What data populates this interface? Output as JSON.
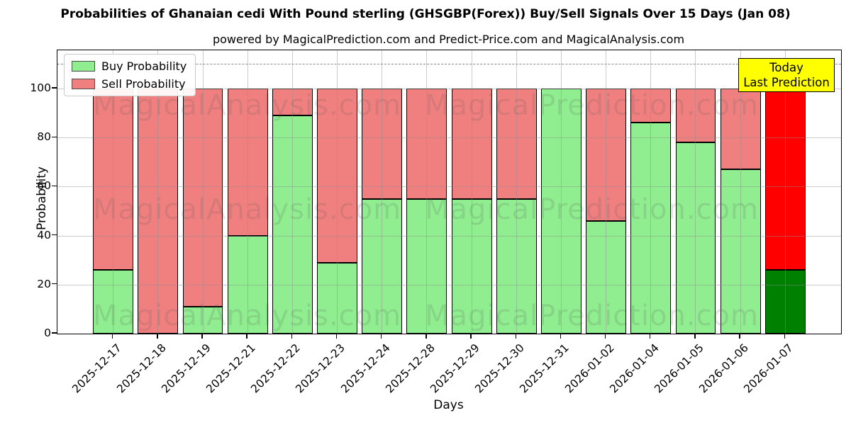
{
  "title": "Probabilities of Ghanaian cedi With Pound sterling (GHSGBP(Forex)) Buy/Sell Signals Over 15 Days (Jan 08)",
  "subtitle": "powered by MagicalPrediction.com and Predict-Price.com and MagicalAnalysis.com",
  "axes": {
    "x_label": "Days",
    "y_label": "Probability",
    "y_ticks": [
      0,
      20,
      40,
      60,
      80,
      100
    ],
    "ylim": [
      0,
      115.6
    ],
    "dashed_threshold": 110,
    "grid": "on"
  },
  "legend": {
    "position": "upper-left",
    "items": [
      {
        "label": "Buy Probability",
        "color": "#90EE90"
      },
      {
        "label": "Sell Probability",
        "color": "#F08080"
      }
    ]
  },
  "annotation_box": {
    "line1": "Today",
    "line2": "Last Prediction",
    "bg_color": "#FFFF00",
    "border_color": "#000000"
  },
  "watermarks": {
    "left_text": "MagicalAnalysis.com",
    "right_text": "MagicalPrediction.com"
  },
  "colors": {
    "buy": "#90EE90",
    "sell": "#F08080",
    "last_buy": "#008000",
    "last_sell": "#FF0000",
    "bar_edge": "#000000",
    "grid": "#8c8c8c",
    "dashed_line": "#8a8a8a"
  },
  "chart_data": {
    "type": "bar",
    "stacked": true,
    "title": "Probabilities of Ghanaian cedi With Pound sterling (GHSGBP(Forex)) Buy/Sell Signals Over 15 Days (Jan 08)",
    "xlabel": "Days",
    "ylabel": "Probability",
    "ylim": [
      0,
      115.6
    ],
    "categories": [
      "2025-12-17",
      "2025-12-18",
      "2025-12-19",
      "2025-12-21",
      "2025-12-22",
      "2025-12-23",
      "2025-12-24",
      "2025-12-28",
      "2025-12-29",
      "2025-12-30",
      "2025-12-31",
      "2026-01-02",
      "2026-01-04",
      "2026-01-05",
      "2026-01-06",
      "2026-01-07"
    ],
    "series": [
      {
        "name": "Buy Probability",
        "color": "#90EE90",
        "values": [
          26,
          0,
          11,
          40,
          89,
          29,
          55,
          55,
          55,
          55,
          100,
          46,
          86,
          78,
          67,
          26
        ]
      },
      {
        "name": "Sell Probability",
        "color": "#F08080",
        "values": [
          74,
          100,
          89,
          60,
          11,
          71,
          45,
          45,
          45,
          45,
          0,
          54,
          14,
          22,
          33,
          74
        ]
      }
    ],
    "last_bar_highlight": {
      "buy_color": "#008000",
      "sell_color": "#FF0000"
    },
    "legend_position": "upper left"
  }
}
